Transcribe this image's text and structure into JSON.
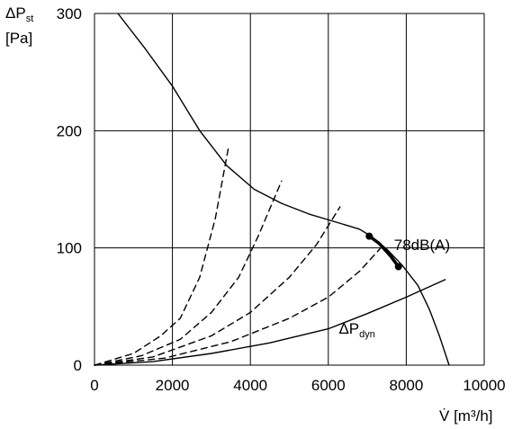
{
  "chart_data": {
    "type": "line",
    "title": "",
    "ylabel": {
      "symbol": "ΔP",
      "sub": "st",
      "unit": "[Pa]"
    },
    "xlabel": {
      "symbol": "V̇",
      "unit": "[m³/h]"
    },
    "xlim": [
      0,
      10000
    ],
    "ylim": [
      0,
      300
    ],
    "x_ticks": [
      0,
      2000,
      4000,
      6000,
      8000,
      10000
    ],
    "y_ticks": [
      0,
      100,
      200,
      300
    ],
    "x_tick_labels": [
      "0",
      "2000",
      "4000",
      "6000",
      "8000",
      "10000"
    ],
    "y_tick_labels": [
      "0",
      "100",
      "200",
      "300"
    ],
    "grid": true,
    "series": [
      {
        "role": "fan-curve",
        "style": "solid",
        "points": [
          [
            600,
            300
          ],
          [
            1300,
            270
          ],
          [
            2000,
            238
          ],
          [
            2700,
            200
          ],
          [
            3400,
            170
          ],
          [
            4100,
            150
          ],
          [
            4800,
            138
          ],
          [
            5500,
            129
          ],
          [
            6200,
            122
          ],
          [
            6800,
            116
          ],
          [
            7100,
            110
          ],
          [
            7500,
            99
          ],
          [
            7900,
            85
          ],
          [
            8300,
            68
          ],
          [
            8600,
            47
          ],
          [
            8850,
            25
          ],
          [
            9000,
            10
          ],
          [
            9100,
            0
          ]
        ]
      },
      {
        "role": "operating-range",
        "style": "bold",
        "points": [
          [
            7050,
            110
          ],
          [
            7300,
            104
          ],
          [
            7600,
            93
          ],
          [
            7800,
            84
          ]
        ]
      },
      {
        "role": "system-curve",
        "style": "dashed",
        "points": [
          [
            0,
            0
          ],
          [
            1000,
            10
          ],
          [
            1700,
            25
          ],
          [
            2200,
            40
          ],
          [
            2700,
            75
          ],
          [
            3100,
            125
          ],
          [
            3450,
            188
          ]
        ]
      },
      {
        "role": "system-curve",
        "style": "dashed",
        "points": [
          [
            0,
            0
          ],
          [
            1200,
            8
          ],
          [
            2200,
            22
          ],
          [
            3000,
            45
          ],
          [
            3700,
            75
          ],
          [
            4200,
            110
          ],
          [
            4800,
            157
          ]
        ]
      },
      {
        "role": "system-curve",
        "style": "dashed",
        "points": [
          [
            0,
            0
          ],
          [
            1500,
            7
          ],
          [
            3000,
            25
          ],
          [
            4000,
            45
          ],
          [
            5000,
            75
          ],
          [
            5700,
            103
          ],
          [
            6300,
            135
          ]
        ]
      },
      {
        "role": "system-curve",
        "style": "dashed",
        "points": [
          [
            0,
            0
          ],
          [
            1800,
            6
          ],
          [
            3500,
            20
          ],
          [
            5000,
            40
          ],
          [
            6000,
            58
          ],
          [
            6800,
            80
          ],
          [
            7400,
            102
          ]
        ]
      },
      {
        "role": "dynamic-pressure",
        "style": "solid",
        "name": {
          "symbol": "ΔP",
          "sub": "dyn"
        },
        "points": [
          [
            0,
            0
          ],
          [
            1500,
            3
          ],
          [
            3000,
            10
          ],
          [
            4500,
            19
          ],
          [
            6000,
            31
          ],
          [
            7000,
            44
          ],
          [
            8000,
            58
          ],
          [
            9000,
            73
          ]
        ]
      }
    ],
    "operating_points": [
      [
        7050,
        110
      ],
      [
        7800,
        84
      ]
    ],
    "annotations": [
      {
        "text": "78dB(A)",
        "x": 7500,
        "y": 103
      }
    ]
  }
}
